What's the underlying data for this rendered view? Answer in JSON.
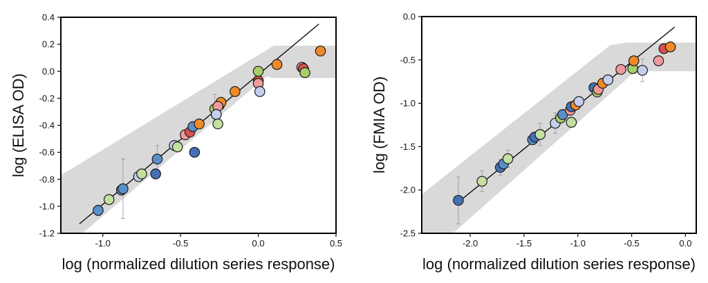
{
  "figure": {
    "title": ""
  },
  "chart_data": [
    {
      "type": "scatter",
      "title": "",
      "xlabel": "log (normalized dilution series response)",
      "ylabel": "log (ELISA OD)",
      "xlim": [
        -1.27,
        0.5
      ],
      "ylim": [
        -1.2,
        0.4
      ],
      "xticks": [
        -1.0,
        -0.5,
        0.0,
        0.5
      ],
      "xtick_labels": [
        "-1.0",
        "-0.5",
        "0.0",
        "0.5"
      ],
      "yticks": [
        -1.2,
        -1.0,
        -0.8,
        -0.6,
        -0.4,
        -0.2,
        0.0,
        0.2,
        0.4
      ],
      "ytick_labels": [
        "-1.2",
        "-1.0",
        "-0.8",
        "-0.6",
        "-0.4",
        "-0.2",
        "0.0",
        "0.2",
        "0.4"
      ],
      "grid": false,
      "fit_line": {
        "x": [
          -1.15,
          0.39
        ],
        "y": [
          -1.13,
          0.35
        ]
      },
      "confidence_band": {
        "upper": [
          [
            -1.27,
            -0.77
          ],
          [
            0.0,
            0.12
          ],
          [
            0.1,
            0.19
          ],
          [
            0.5,
            0.19
          ]
        ],
        "lower": [
          [
            -1.27,
            -1.32
          ],
          [
            -1.1,
            -1.17
          ],
          [
            0.05,
            -0.04
          ],
          [
            0.1,
            -0.05
          ],
          [
            0.5,
            -0.05
          ]
        ]
      },
      "points": [
        {
          "x": -1.03,
          "y": -1.03,
          "err": 0.04,
          "color": "#5b8fc9"
        },
        {
          "x": -0.96,
          "y": -0.95,
          "err": 0,
          "color": "#c3e0a0"
        },
        {
          "x": -0.88,
          "y": -0.88,
          "err": 0,
          "color": "#5b8fc9"
        },
        {
          "x": -0.87,
          "y": -0.87,
          "err": 0.22,
          "color": "#5b8fc9"
        },
        {
          "x": -0.77,
          "y": -0.78,
          "err": 0,
          "color": "#c4cff0"
        },
        {
          "x": -0.75,
          "y": -0.76,
          "err": 0,
          "color": "#c3e0a0"
        },
        {
          "x": -0.66,
          "y": -0.76,
          "err": 0,
          "color": "#4670b5"
        },
        {
          "x": -0.65,
          "y": -0.65,
          "err": 0.1,
          "color": "#5b8fc9"
        },
        {
          "x": -0.54,
          "y": -0.55,
          "err": 0,
          "color": "#c4cff0"
        },
        {
          "x": -0.52,
          "y": -0.56,
          "err": 0,
          "color": "#c3e0a0"
        },
        {
          "x": -0.47,
          "y": -0.47,
          "err": 0,
          "color": "#ef9a9a"
        },
        {
          "x": -0.44,
          "y": -0.45,
          "err": 0,
          "color": "#d85050"
        },
        {
          "x": -0.42,
          "y": -0.41,
          "err": 0,
          "color": "#5b8fc9"
        },
        {
          "x": -0.41,
          "y": -0.6,
          "err": 0,
          "color": "#4670b5"
        },
        {
          "x": -0.38,
          "y": -0.39,
          "err": 0,
          "color": "#ee8a2a"
        },
        {
          "x": -0.28,
          "y": -0.28,
          "err": 0.11,
          "color": "#a7cf6a"
        },
        {
          "x": -0.25,
          "y": -0.25,
          "err": 0,
          "color": "#d85050"
        },
        {
          "x": -0.24,
          "y": -0.23,
          "err": 0,
          "color": "#ee8a2a"
        },
        {
          "x": -0.26,
          "y": -0.26,
          "err": 0,
          "color": "#ef9a9a"
        },
        {
          "x": -0.27,
          "y": -0.32,
          "err": 0,
          "color": "#c4cff0"
        },
        {
          "x": -0.26,
          "y": -0.39,
          "err": 0,
          "color": "#c3e0a0"
        },
        {
          "x": -0.15,
          "y": -0.15,
          "err": 0,
          "color": "#ee8a2a"
        },
        {
          "x": 0.0,
          "y": -0.07,
          "err": 0,
          "color": "#d85050"
        },
        {
          "x": 0.0,
          "y": -0.09,
          "err": 0,
          "color": "#ef9a9a"
        },
        {
          "x": 0.01,
          "y": -0.15,
          "err": 0,
          "color": "#c4cff0"
        },
        {
          "x": 0.0,
          "y": 0.0,
          "err": 0,
          "color": "#a7cf6a"
        },
        {
          "x": 0.12,
          "y": 0.05,
          "err": 0,
          "color": "#ee8a2a"
        },
        {
          "x": 0.28,
          "y": 0.03,
          "err": 0,
          "color": "#ef9a9a"
        },
        {
          "x": 0.29,
          "y": 0.02,
          "err": 0,
          "color": "#d85050"
        },
        {
          "x": 0.3,
          "y": -0.01,
          "err": 0.03,
          "color": "#a7cf6a"
        },
        {
          "x": 0.4,
          "y": 0.15,
          "err": 0,
          "color": "#ee8a2a"
        }
      ]
    },
    {
      "type": "scatter",
      "title": "",
      "xlabel": "log (normalized dilution series response)",
      "ylabel": "log (FMIA OD)",
      "xlim": [
        -2.45,
        0.1
      ],
      "ylim": [
        -2.5,
        0.0
      ],
      "xticks": [
        -2.0,
        -1.5,
        -1.0,
        -0.5,
        0.0
      ],
      "xtick_labels": [
        "-2.0",
        "-1.5",
        "-1.0",
        "-0.5",
        "0.0"
      ],
      "yticks": [
        -2.5,
        -2.0,
        -1.5,
        -1.0,
        -0.5,
        0.0
      ],
      "ytick_labels": [
        "-2.5",
        "-2.0",
        "-1.5",
        "-1.0",
        "-0.5",
        "0.0"
      ],
      "grid": false,
      "fit_line": {
        "x": [
          -2.12,
          -0.1
        ],
        "y": [
          -2.15,
          -0.12
        ]
      },
      "confidence_band": {
        "upper": [
          [
            -2.45,
            -2.05
          ],
          [
            -0.7,
            -0.33
          ],
          [
            -0.55,
            -0.3
          ],
          [
            0.1,
            -0.3
          ]
        ],
        "lower": [
          [
            -2.45,
            -2.7
          ],
          [
            -2.25,
            -2.6
          ],
          [
            -0.5,
            -0.67
          ],
          [
            -0.35,
            -0.63
          ],
          [
            0.1,
            -0.63
          ]
        ]
      },
      "points": [
        {
          "x": -2.11,
          "y": -2.12,
          "err": 0.27,
          "color": "#4670b5"
        },
        {
          "x": -1.89,
          "y": -1.9,
          "err": 0.12,
          "color": "#c3e0a0"
        },
        {
          "x": -1.72,
          "y": -1.74,
          "err": 0.09,
          "color": "#4670b5"
        },
        {
          "x": -1.69,
          "y": -1.7,
          "err": 0,
          "color": "#5b8fc9"
        },
        {
          "x": -1.65,
          "y": -1.64,
          "err": 0.1,
          "color": "#c3e0a0"
        },
        {
          "x": -1.42,
          "y": -1.42,
          "err": 0,
          "color": "#5b8fc9"
        },
        {
          "x": -1.4,
          "y": -1.39,
          "err": 0,
          "color": "#4670b5"
        },
        {
          "x": -1.35,
          "y": -1.36,
          "err": 0.13,
          "color": "#c3e0a0"
        },
        {
          "x": -1.21,
          "y": -1.23,
          "err": 0.12,
          "color": "#c4cff0"
        },
        {
          "x": -1.16,
          "y": -1.17,
          "err": 0,
          "color": "#a7cf6a"
        },
        {
          "x": -1.14,
          "y": -1.13,
          "err": 0,
          "color": "#5b8fc9"
        },
        {
          "x": -1.07,
          "y": -1.08,
          "err": 0,
          "color": "#ef9a9a"
        },
        {
          "x": -1.06,
          "y": -1.22,
          "err": 0,
          "color": "#c3e0a0"
        },
        {
          "x": -1.06,
          "y": -1.04,
          "err": 0,
          "color": "#4670b5"
        },
        {
          "x": -1.02,
          "y": -1.02,
          "err": 0,
          "color": "#ee8a2a"
        },
        {
          "x": -0.99,
          "y": -0.98,
          "err": 0,
          "color": "#c4cff0"
        },
        {
          "x": -0.85,
          "y": -0.82,
          "err": 0,
          "color": "#4670b5"
        },
        {
          "x": -0.82,
          "y": -0.87,
          "err": 0,
          "color": "#a7cf6a"
        },
        {
          "x": -0.81,
          "y": -0.84,
          "err": 0,
          "color": "#ef9a9a"
        },
        {
          "x": -0.77,
          "y": -0.77,
          "err": 0,
          "color": "#ee8a2a"
        },
        {
          "x": -0.72,
          "y": -0.73,
          "err": 0,
          "color": "#c4cff0"
        },
        {
          "x": -0.6,
          "y": -0.61,
          "err": 0,
          "color": "#ef9a9a"
        },
        {
          "x": -0.49,
          "y": -0.6,
          "err": 0,
          "color": "#a7cf6a"
        },
        {
          "x": -0.48,
          "y": -0.51,
          "err": 0,
          "color": "#ee8a2a"
        },
        {
          "x": -0.4,
          "y": -0.62,
          "err": 0.13,
          "color": "#c4cff0"
        },
        {
          "x": -0.25,
          "y": -0.51,
          "err": 0.05,
          "color": "#ef9a9a"
        },
        {
          "x": -0.2,
          "y": -0.37,
          "err": 0,
          "color": "#d85050"
        },
        {
          "x": -0.14,
          "y": -0.35,
          "err": 0,
          "color": "#ee8a2a"
        }
      ]
    }
  ]
}
